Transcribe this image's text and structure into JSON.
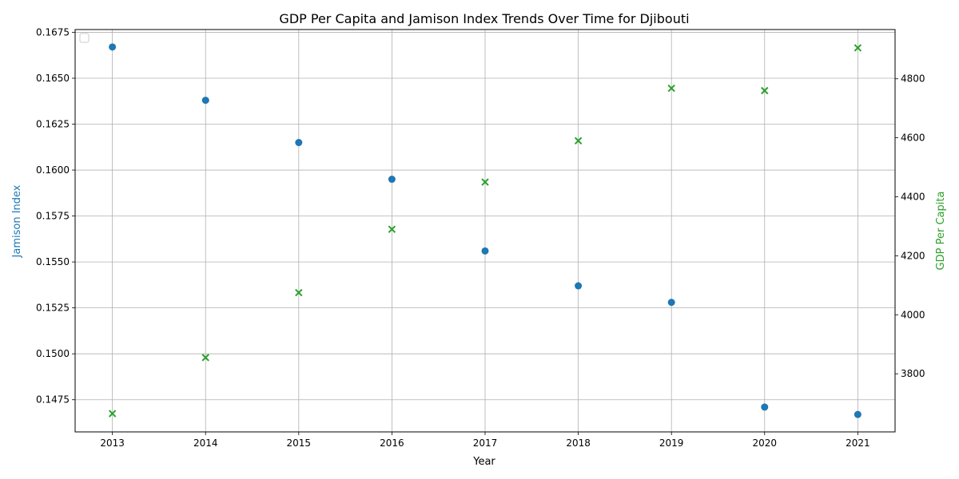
{
  "chart_data": {
    "type": "scatter",
    "title": "GDP Per Capita and Jamison Index Trends Over Time for Djibouti",
    "xlabel": "Year",
    "x": [
      2013,
      2014,
      2015,
      2016,
      2017,
      2018,
      2019,
      2020,
      2021
    ],
    "xlim": [
      2012.6,
      2021.4
    ],
    "grid": true,
    "legend": {
      "placement": "upper-left",
      "entries": []
    },
    "series": [
      {
        "axis": "left",
        "marker": "circle",
        "color": "#1f77b4",
        "values": [
          0.1667,
          0.1638,
          0.1615,
          0.1595,
          0.1556,
          0.1537,
          0.1528,
          0.1471,
          0.1467
        ]
      },
      {
        "axis": "right",
        "marker": "x",
        "color": "#2ca02c",
        "values": [
          3665,
          3855,
          4075,
          4290,
          4450,
          4590,
          4768,
          4760,
          4905
        ]
      }
    ],
    "left_axis": {
      "label": "Jamison Index",
      "color": "#1f77b4",
      "ylim": [
        0.14575,
        0.16765
      ],
      "ticks": [
        "0.1475",
        "0.1500",
        "0.1525",
        "0.1550",
        "0.1575",
        "0.1600",
        "0.1625",
        "0.1650",
        "0.1675"
      ]
    },
    "right_axis": {
      "label": "GDP Per Capita",
      "color": "#2ca02c",
      "ylim": [
        3603,
        4967
      ],
      "ticks": [
        "3800",
        "4000",
        "4200",
        "4400",
        "4600",
        "4800"
      ]
    },
    "x_ticks": [
      "2013",
      "2014",
      "2015",
      "2016",
      "2017",
      "2018",
      "2019",
      "2020",
      "2021"
    ]
  }
}
